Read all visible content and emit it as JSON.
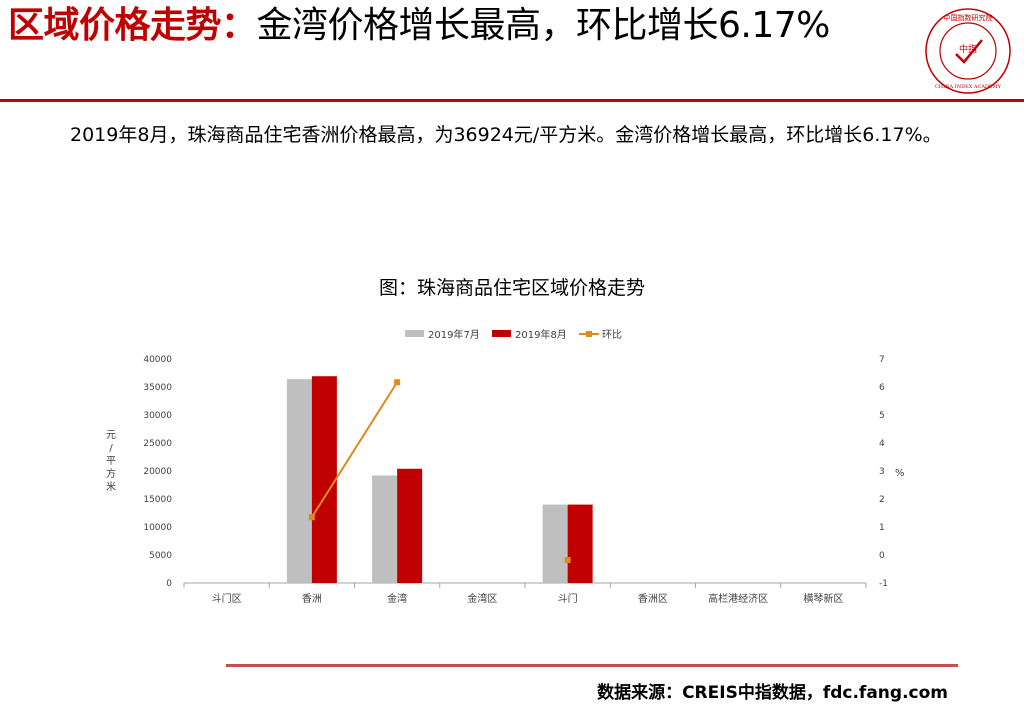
{
  "header": {
    "title_highlight": "区域价格走势：",
    "title_rest": "金湾价格增长最高，环比增长6.17%",
    "logo_text": "中指",
    "logo_ring_text": "中国指数研究院",
    "logo_subtext": "CHINA INDEX ACADEMY",
    "colors": {
      "accent": "#c00000"
    }
  },
  "body": {
    "paragraph": "2019年8月，珠海商品住宅香洲价格最高，为36924元/平方米。金湾价格增长最高，环比增长6.17%。"
  },
  "chart_data": {
    "type": "bar",
    "title": "图：珠海商品住宅区域价格走势",
    "categories": [
      "斗门区",
      "香洲",
      "金湾",
      "金湾区",
      "斗门",
      "香洲区",
      "高栏港经济区",
      "横琴新区"
    ],
    "series": [
      {
        "name": "2019年7月",
        "type": "bar",
        "axis": "left",
        "color": "#bfbfbf",
        "values": [
          null,
          36400,
          19200,
          null,
          14000,
          null,
          null,
          null
        ]
      },
      {
        "name": "2019年8月",
        "type": "bar",
        "axis": "left",
        "color": "#c00000",
        "values": [
          null,
          36924,
          20400,
          null,
          14000,
          null,
          null,
          null
        ]
      },
      {
        "name": "环比",
        "type": "line",
        "axis": "right",
        "color": "#e08a1e",
        "values": [
          null,
          1.35,
          6.17,
          null,
          -0.18,
          null,
          null,
          null
        ]
      }
    ],
    "ylabel": "元/平方米",
    "ylim": [
      0,
      40000
    ],
    "yticks": [
      0,
      5000,
      10000,
      15000,
      20000,
      25000,
      30000,
      35000,
      40000
    ],
    "y2label": "%",
    "y2lim": [
      -1,
      7
    ],
    "y2ticks": [
      -1,
      0,
      1,
      2,
      3,
      4,
      5,
      6,
      7
    ],
    "legend": "top-center",
    "grid": false
  },
  "footer": {
    "source": "数据来源：CREIS中指数据，fdc.fang.com"
  }
}
